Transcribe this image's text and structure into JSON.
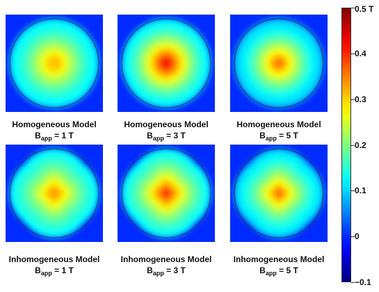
{
  "chart_data": {
    "type": "heatmap",
    "units": "T",
    "color_range": [
      -0.1,
      0.5
    ],
    "colorbar": {
      "colormap": "jet",
      "ticks": [
        {
          "value": 0.5,
          "label": "0.5 T"
        },
        {
          "value": 0.4,
          "label": "0.4"
        },
        {
          "value": 0.3,
          "label": "0.3"
        },
        {
          "value": 0.2,
          "label": "0.2"
        },
        {
          "value": 0.1,
          "label": "0.1"
        },
        {
          "value": 0.0,
          "label": "0"
        },
        {
          "value": -0.1,
          "label": "−0.1"
        }
      ]
    },
    "panels": [
      {
        "model": "Homogeneous Model",
        "field_label": "app",
        "applied_field": "1 T",
        "shape": "circular",
        "background": 0.0,
        "edge": 0.12,
        "peak": 0.31,
        "core_width": 0.45
      },
      {
        "model": "Homogeneous Model",
        "field_label": "app",
        "applied_field": "3 T",
        "shape": "circular",
        "background": 0.0,
        "edge": 0.12,
        "peak": 0.44,
        "core_width": 0.2
      },
      {
        "model": "Homogeneous Model",
        "field_label": "app",
        "applied_field": "5 T",
        "shape": "circular",
        "background": 0.0,
        "edge": 0.1,
        "peak": 0.38,
        "core_width": 0.15
      },
      {
        "model": "Inhomogeneous Model",
        "field_label": "app",
        "applied_field": "1 T",
        "shape": "star",
        "background": 0.0,
        "edge": 0.12,
        "peak": 0.33,
        "core_width": 0.45
      },
      {
        "model": "Inhomogeneous Model",
        "field_label": "app",
        "applied_field": "3 T",
        "shape": "star",
        "background": 0.0,
        "edge": 0.12,
        "peak": 0.4,
        "core_width": 0.3
      },
      {
        "model": "Inhomogeneous Model",
        "field_label": "app",
        "applied_field": "5 T",
        "shape": "star",
        "background": 0.0,
        "edge": 0.1,
        "peak": 0.37,
        "core_width": 0.25
      }
    ]
  },
  "captions": [
    {
      "line1": "Homogeneous Model",
      "b": "B",
      "sub": "app",
      "value": " = 1 T"
    },
    {
      "line1": "Homogeneous Model",
      "b": "B",
      "sub": "app",
      "value": " = 3 T"
    },
    {
      "line1": "Homogeneous Model",
      "b": "B",
      "sub": "app",
      "value": " = 5 T"
    },
    {
      "line1": "Inhomogeneous Model",
      "b": "B",
      "sub": "app",
      "value": " = 1 T"
    },
    {
      "line1": "Inhomogeneous Model",
      "b": "B",
      "sub": "app",
      "value": " = 3 T"
    },
    {
      "line1": "Inhomogeneous Model",
      "b": "B",
      "sub": "app",
      "value": " = 5 T"
    }
  ]
}
